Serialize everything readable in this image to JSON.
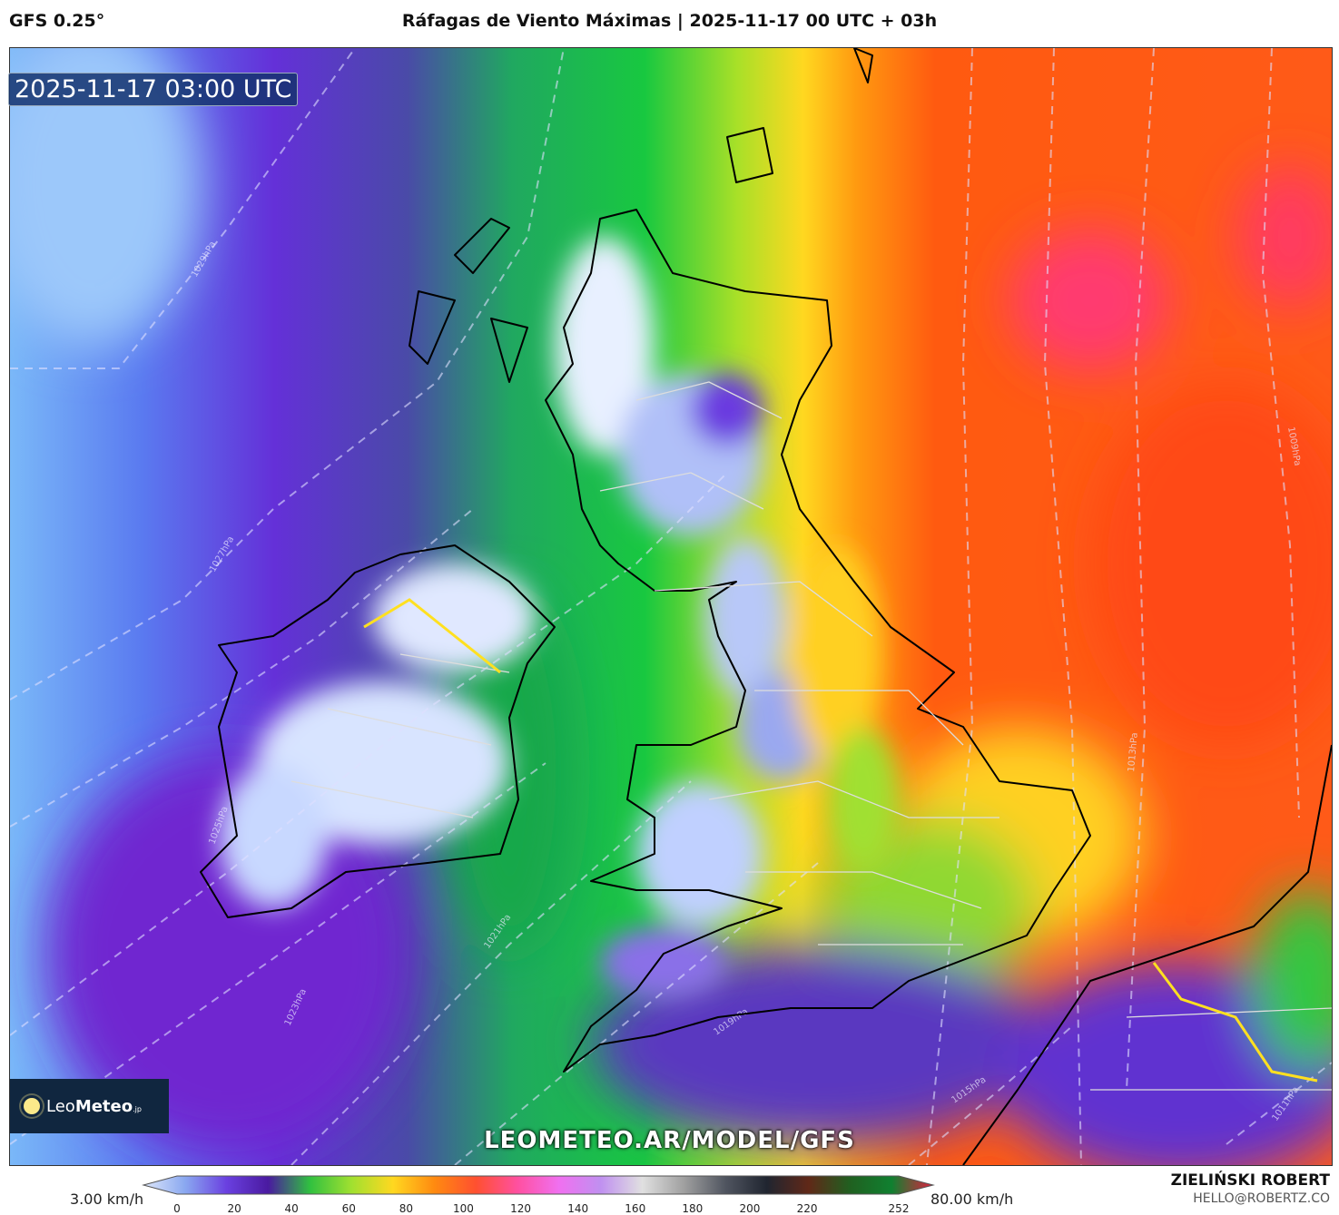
{
  "header": {
    "model": "GFS 0.25°",
    "title": "Ráfagas de Viento Máximas | 2025-11-17 00 UTC + 03h"
  },
  "map": {
    "timestamp": "2025-11-17 03:00 UTC",
    "watermark": "LEOMETEO.AR/MODEL/GFS",
    "logo": {
      "leo": "Leo",
      "meteo": "Meteo",
      "suffix": ".jp"
    },
    "isobar_labels": [
      "1029hPa",
      "1027hPa",
      "1025hPa",
      "1023hPa",
      "1021hPa",
      "1019hPa",
      "1015hPa",
      "1013hPa",
      "1011hPa",
      "1009hPa"
    ]
  },
  "colorbar": {
    "min_label": "3.00 km/h",
    "max_label": "80.00 km/h",
    "ticks": [
      "0",
      "20",
      "40",
      "60",
      "80",
      "100",
      "120",
      "140",
      "160",
      "180",
      "200",
      "220",
      "252"
    ],
    "tick_values": [
      0,
      20,
      40,
      60,
      80,
      100,
      120,
      140,
      160,
      180,
      200,
      220,
      252
    ],
    "colors": [
      "#dfe8fa",
      "#8aa8f0",
      "#6a40e0",
      "#4a1aa0",
      "#30c040",
      "#a0e030",
      "#ffd820",
      "#ff8a10",
      "#ff5030",
      "#ff50a0",
      "#f070f0",
      "#c090f0",
      "#e0e0e0",
      "#a0a0a0",
      "#505560",
      "#202530",
      "#602818",
      "#206020",
      "#108030",
      "#e02040"
    ]
  },
  "author": {
    "name": "ZIELIŃSKI ROBERT",
    "email": "HELLO@ROBERTZ.CO"
  }
}
